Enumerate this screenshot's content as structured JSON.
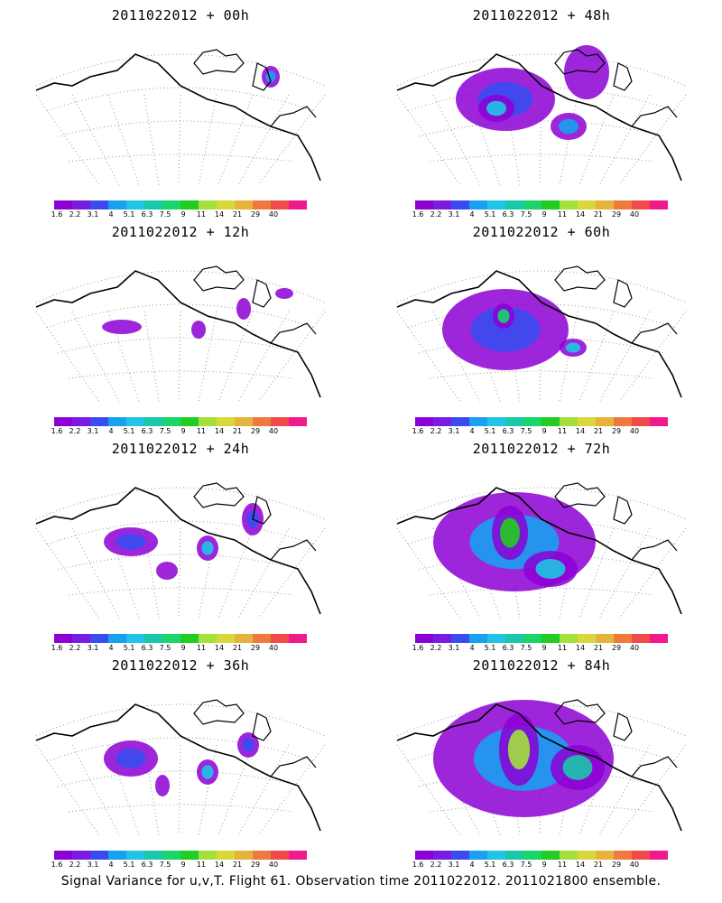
{
  "panels": [
    {
      "title": "2011022012 + 00h"
    },
    {
      "title": "2011022012 + 48h"
    },
    {
      "title": "2011022012 + 12h"
    },
    {
      "title": "2011022012 + 60h"
    },
    {
      "title": "2011022012 + 24h"
    },
    {
      "title": "2011022012 + 72h"
    },
    {
      "title": "2011022012 + 36h"
    },
    {
      "title": "2011022012 + 84h"
    }
  ],
  "colorbar": {
    "labels": [
      "1.6",
      "2.2",
      "3.1",
      "4",
      "5.1",
      "6.3",
      "7.5",
      "9",
      "11",
      "14",
      "21",
      "29",
      "40"
    ],
    "colors": [
      "#8c00d4",
      "#7a1ce0",
      "#3a4cf0",
      "#19a0f0",
      "#1fc4e6",
      "#19c8a8",
      "#1bd46a",
      "#22cc22",
      "#a4e03c",
      "#d8d83c",
      "#e6b43c",
      "#f07a3c",
      "#f04a4a",
      "#f01a8c"
    ]
  },
  "footer": "Signal Variance for u,v,T. Flight 61. Observation time 2011022012. 2011021800 ensemble."
}
